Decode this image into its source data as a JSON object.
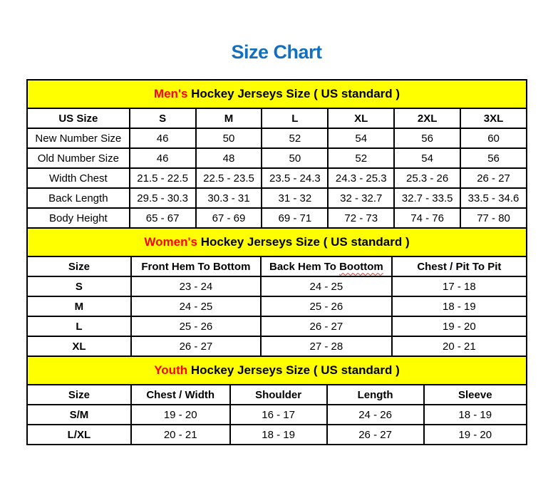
{
  "page": {
    "title": "Size Chart"
  },
  "colors": {
    "title_blue": "#1270BE",
    "banner_yellow": "#FFFF00",
    "accent_red": "#FF0000",
    "border_black": "#000000",
    "spellcheck_red": "#D03A2A"
  },
  "chart_data": [
    {
      "type": "table",
      "id": "mens",
      "banner_accent": "Men's",
      "banner_rest": " Hockey Jerseys Size ( US standard )",
      "columns": [
        "US Size",
        "S",
        "M",
        "L",
        "XL",
        "2XL",
        "3XL"
      ],
      "rows": [
        {
          "label": "New Number Size",
          "values": [
            "46",
            "50",
            "52",
            "54",
            "56",
            "60"
          ]
        },
        {
          "label": "Old Number Size",
          "values": [
            "46",
            "48",
            "50",
            "52",
            "54",
            "56"
          ]
        },
        {
          "label": "Width Chest",
          "values": [
            "21.5 - 22.5",
            "22.5 - 23.5",
            "23.5 - 24.3",
            "24.3 - 25.3",
            "25.3 - 26",
            "26 - 27"
          ]
        },
        {
          "label": "Back Length",
          "values": [
            "29.5 - 30.3",
            "30.3 - 31",
            "31 - 32",
            "32 - 32.7",
            "32.7 - 33.5",
            "33.5 - 34.6"
          ]
        },
        {
          "label": "Body Height",
          "values": [
            "65 - 67",
            "67 - 69",
            "69 - 71",
            "72 - 73",
            "74 - 76",
            "77 - 80"
          ]
        }
      ]
    },
    {
      "type": "table",
      "id": "womens",
      "banner_accent": "Women's",
      "banner_rest": " Hockey Jerseys Size ( US standard )",
      "columns": [
        "Size",
        "Front Hem To Bottom",
        "Back Hem To Boottom",
        "Chest / Pit To Pit"
      ],
      "misspelled": {
        "column_index": 2,
        "word": "Boottom"
      },
      "rows": [
        {
          "label": "S",
          "values": [
            "23 - 24",
            "24 - 25",
            "17 - 18"
          ]
        },
        {
          "label": "M",
          "values": [
            "24 - 25",
            "25 - 26",
            "18 - 19"
          ]
        },
        {
          "label": "L",
          "values": [
            "25 - 26",
            "26 - 27",
            "19 - 20"
          ]
        },
        {
          "label": "XL",
          "values": [
            "26 - 27",
            "27 - 28",
            "20 - 21"
          ]
        }
      ]
    },
    {
      "type": "table",
      "id": "youth",
      "banner_accent": "Youth",
      "banner_rest": " Hockey Jerseys Size ( US standard )",
      "columns": [
        "Size",
        "Chest / Width",
        "Shoulder",
        "Length",
        "Sleeve"
      ],
      "rows": [
        {
          "label": "S/M",
          "values": [
            "19 - 20",
            "16 - 17",
            "24 - 26",
            "18 - 19"
          ]
        },
        {
          "label": "L/XL",
          "values": [
            "20 - 21",
            "18 - 19",
            "26 - 27",
            "19 - 20"
          ]
        }
      ]
    }
  ]
}
